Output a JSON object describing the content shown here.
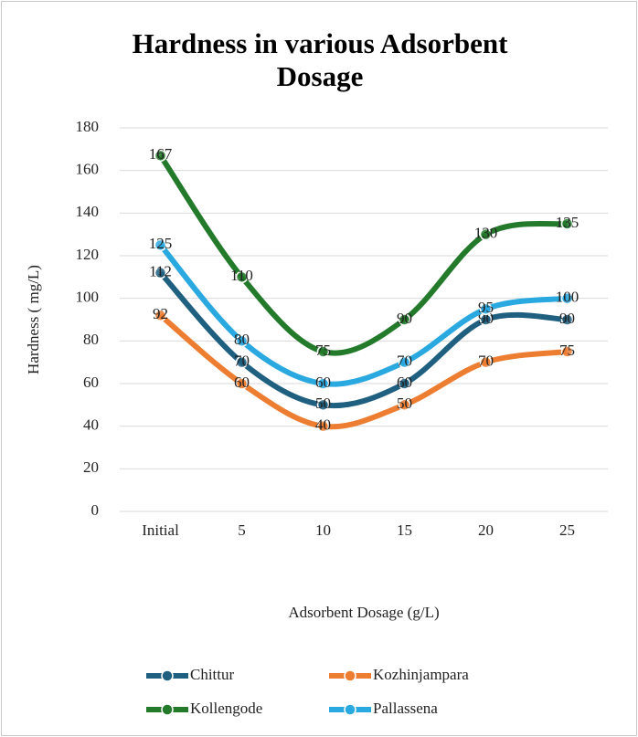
{
  "chart_data": {
    "type": "line",
    "title": "Hardness in various Adsorbent Dosage",
    "xlabel": "Adsorbent Dosage (g/L)",
    "ylabel": "Hardness ( mg/L)",
    "categories": [
      "Initial",
      "5",
      "10",
      "15",
      "20",
      "25"
    ],
    "series": [
      {
        "name": "Chittur",
        "color": "#1f5f7f",
        "values": [
          112,
          70,
          50,
          60,
          90,
          90
        ]
      },
      {
        "name": "Kozhinjampara",
        "color": "#ed7d31",
        "values": [
          92,
          60,
          40,
          50,
          70,
          75
        ]
      },
      {
        "name": "Kollengode",
        "color": "#237a2b",
        "values": [
          167,
          110,
          75,
          90,
          130,
          135
        ]
      },
      {
        "name": "Pallassena",
        "color": "#2aa8e0",
        "values": [
          125,
          80,
          60,
          70,
          95,
          100
        ]
      }
    ],
    "ylim": [
      0,
      180
    ],
    "yticks": [
      0,
      20,
      40,
      60,
      80,
      100,
      120,
      140,
      160,
      180
    ],
    "grid": true,
    "legend": "bottom"
  }
}
